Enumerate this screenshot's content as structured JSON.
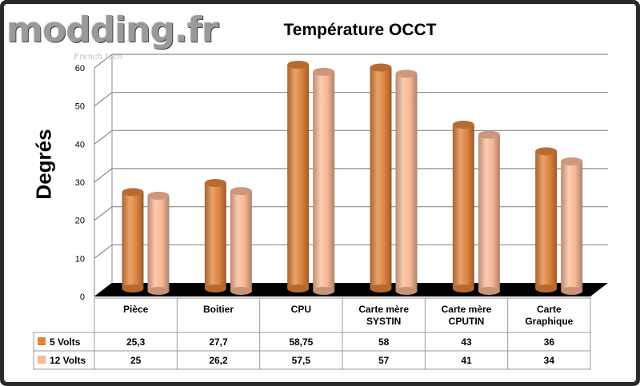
{
  "watermark": {
    "logo": "modding.fr",
    "tagline": "French tech"
  },
  "chart_data": {
    "type": "bar",
    "title": "Température OCCT",
    "xlabel": "",
    "ylabel": "Degrés",
    "ylim": [
      0,
      60
    ],
    "yticks": [
      "0",
      "10",
      "20",
      "30",
      "40",
      "50",
      "60"
    ],
    "categories": [
      "Pièce",
      "Boitier",
      "CPU",
      "Carte mère SYSTIN",
      "Carte mère CPUTIN",
      "Carte Graphique"
    ],
    "series": [
      {
        "name": "5 Volts",
        "color": "#e0843e",
        "values": [
          25.3,
          27.7,
          58.75,
          58,
          43,
          36
        ],
        "labels": [
          "25,3",
          "27,7",
          "58,75",
          "58",
          "43",
          "36"
        ]
      },
      {
        "name": "12 Volts",
        "color": "#f9b896",
        "values": [
          25,
          26.2,
          57.5,
          57,
          41,
          34
        ],
        "labels": [
          "25",
          "26,2",
          "57,5",
          "57",
          "41",
          "34"
        ]
      }
    ],
    "grid": true,
    "legend": "data-table"
  },
  "colors": {
    "frame": "#2a2a2a",
    "accent": "#e3590f",
    "floor": "#000000"
  }
}
